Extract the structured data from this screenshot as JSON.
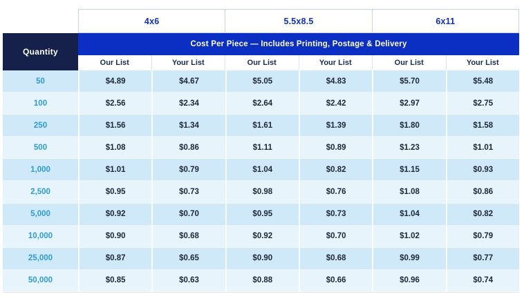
{
  "table": {
    "quantity_header": "Quantity",
    "banner": "Cost Per Piece — Includes Printing, Postage & Delivery",
    "size_groups": [
      "4x6",
      "5.5x8.5",
      "6x11"
    ],
    "sub_headers": [
      "Our List",
      "Your List",
      "Our List",
      "Your List",
      "Our List",
      "Your List"
    ],
    "rows": [
      {
        "quantity": "50",
        "prices": [
          "$4.89",
          "$4.67",
          "$5.05",
          "$4.83",
          "$5.70",
          "$5.48"
        ]
      },
      {
        "quantity": "100",
        "prices": [
          "$2.56",
          "$2.34",
          "$2.64",
          "$2.42",
          "$2.97",
          "$2.75"
        ]
      },
      {
        "quantity": "250",
        "prices": [
          "$1.56",
          "$1.34",
          "$1.61",
          "$1.39",
          "$1.80",
          "$1.58"
        ]
      },
      {
        "quantity": "500",
        "prices": [
          "$1.08",
          "$0.86",
          "$1.11",
          "$0.89",
          "$1.23",
          "$1.01"
        ]
      },
      {
        "quantity": "1,000",
        "prices": [
          "$1.01",
          "$0.79",
          "$1.04",
          "$0.82",
          "$1.15",
          "$0.93"
        ]
      },
      {
        "quantity": "2,500",
        "prices": [
          "$0.95",
          "$0.73",
          "$0.98",
          "$0.76",
          "$1.08",
          "$0.86"
        ]
      },
      {
        "quantity": "5,000",
        "prices": [
          "$0.92",
          "$0.70",
          "$0.95",
          "$0.73",
          "$1.04",
          "$0.82"
        ]
      },
      {
        "quantity": "10,000",
        "prices": [
          "$0.90",
          "$0.68",
          "$0.92",
          "$0.70",
          "$1.02",
          "$0.79"
        ]
      },
      {
        "quantity": "25,000",
        "prices": [
          "$0.87",
          "$0.65",
          "$0.90",
          "$0.68",
          "$0.99",
          "$0.77"
        ]
      },
      {
        "quantity": "50,000",
        "prices": [
          "$0.85",
          "$0.63",
          "$0.88",
          "$0.66",
          "$0.96",
          "$0.74"
        ]
      }
    ]
  },
  "colors": {
    "navy_header": "#15214b",
    "banner_blue": "#0c2fc3",
    "size_label_blue": "#0d2fc5",
    "quantity_text_blue": "#2e9bd6",
    "price_text": "#1d2738",
    "row_dark": "#cfe9f8",
    "row_light": "#e7f4fc",
    "header_border": "#c7d2ea"
  }
}
